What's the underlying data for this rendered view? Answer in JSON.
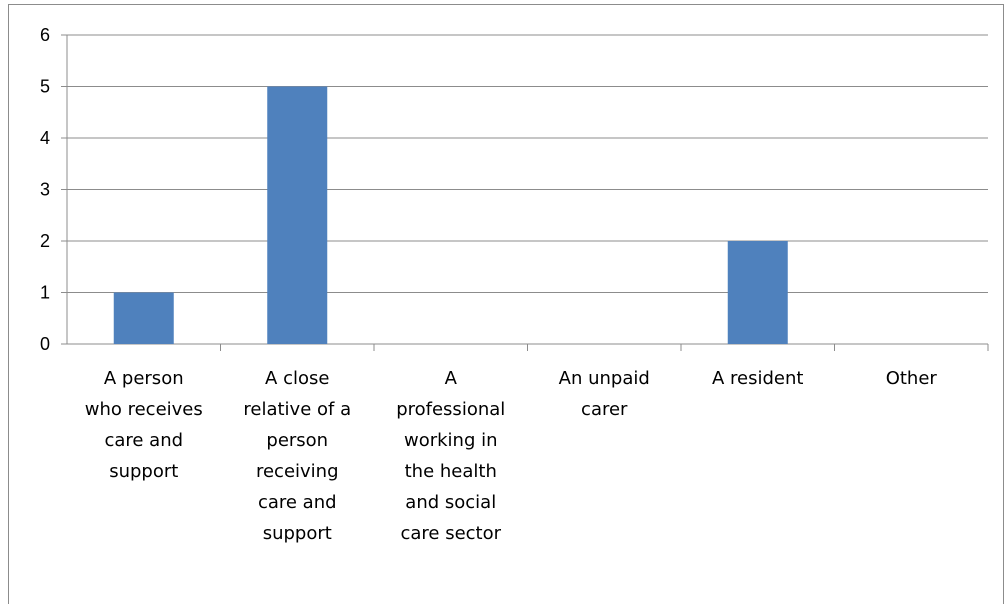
{
  "chart_data": {
    "type": "bar",
    "categories": [
      "A person who receives care and support",
      "A close relative of a person receiving care and support",
      "A professional working in the health and social care sector",
      "An unpaid carer",
      "A resident",
      "Other"
    ],
    "category_lines": [
      [
        "A person",
        "who receives",
        "care and",
        "support"
      ],
      [
        "A close",
        "relative of a",
        "person",
        "receiving",
        "care and",
        "support"
      ],
      [
        "A",
        "professional",
        "working in",
        "the health",
        "and social",
        "care sector"
      ],
      [
        "An unpaid",
        "carer"
      ],
      [
        "A resident"
      ],
      [
        "Other"
      ]
    ],
    "values": [
      1,
      5,
      0,
      0,
      2,
      0
    ],
    "ylim": [
      0,
      6
    ],
    "yticks": [
      0,
      1,
      2,
      3,
      4,
      5,
      6
    ],
    "grid": true,
    "bar_color": "#4f81bd",
    "title": "",
    "xlabel": "",
    "ylabel": ""
  }
}
